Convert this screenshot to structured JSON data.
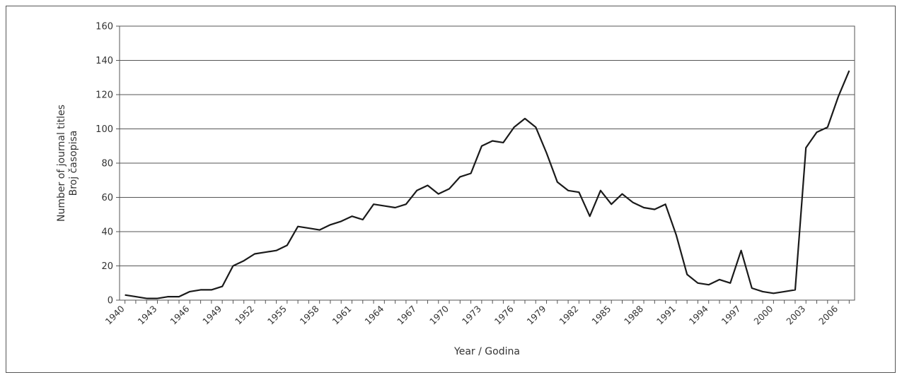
{
  "chart_data": {
    "type": "line",
    "xlabel": "Year / Godina",
    "ylabel": "Number of journal titles",
    "ylabel_2": "Broj časopisa",
    "ylim": [
      0,
      160
    ],
    "yticks": [
      0,
      20,
      40,
      60,
      80,
      100,
      120,
      140,
      160
    ],
    "x_tick_labels": [
      "1940",
      "1943",
      "1946",
      "1949",
      "1952",
      "1955",
      "1958",
      "1961",
      "1964",
      "1967",
      "1970",
      "1973",
      "1976",
      "1979",
      "1982",
      "1985",
      "1988",
      "1991",
      "1994",
      "1997",
      "2000",
      "2003",
      "2006"
    ],
    "grid": true,
    "legend": "none",
    "line_color": "#1a1a1a",
    "series": [
      {
        "x": [
          1940,
          1941,
          1942,
          1943,
          1944,
          1945,
          1946,
          1947,
          1948,
          1949,
          1950,
          1951,
          1952,
          1953,
          1954,
          1955,
          1956,
          1957,
          1958,
          1959,
          1960,
          1961,
          1962,
          1963,
          1964,
          1965,
          1966,
          1967,
          1968,
          1969,
          1970,
          1971,
          1972,
          1973,
          1974,
          1975,
          1976,
          1977,
          1978,
          1979,
          1980,
          1981,
          1982,
          1983,
          1984,
          1985,
          1986,
          1987,
          1988,
          1989,
          1990,
          1991,
          1992,
          1993,
          1994,
          1995,
          1996,
          1997,
          1998,
          1999,
          2000,
          2001,
          2002,
          2003,
          2004,
          2005,
          2006,
          2007
        ],
        "values": [
          3,
          2,
          1,
          1,
          2,
          2,
          5,
          6,
          6,
          8,
          20,
          23,
          27,
          28,
          29,
          32,
          43,
          42,
          41,
          44,
          46,
          49,
          47,
          56,
          55,
          54,
          56,
          64,
          67,
          62,
          65,
          72,
          74,
          90,
          93,
          92,
          101,
          106,
          101,
          86,
          69,
          64,
          63,
          49,
          64,
          56,
          62,
          57,
          54,
          53,
          56,
          38,
          15,
          10,
          9,
          12,
          10,
          29,
          7,
          5,
          4,
          5,
          6,
          89,
          98,
          101,
          119,
          134
        ]
      }
    ]
  }
}
